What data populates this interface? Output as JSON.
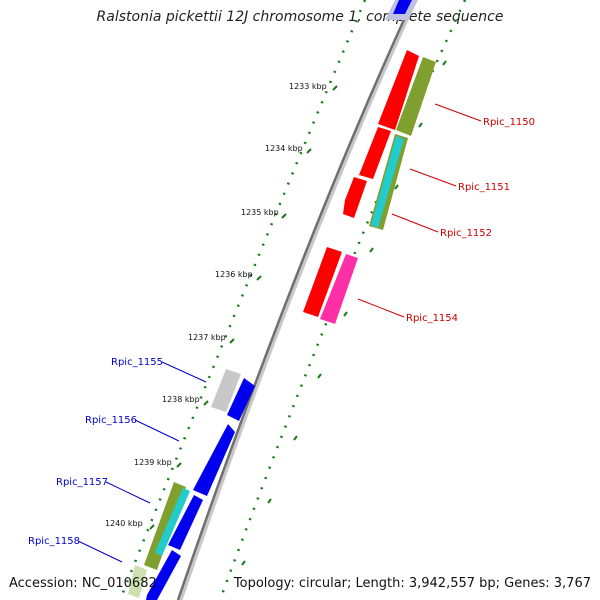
{
  "title": "Ralstonia pickettii 12J chromosome 1, complete sequence",
  "accession": "Accession: NC_010682",
  "topology": "Topology: circular; Length: 3,942,557 bp; Genes: 3,767",
  "ticks": [
    "1233 kbp",
    "1234 kbp",
    "1235 kbp",
    "1236 kbp",
    "1237 kbp",
    "1238 kbp",
    "1239 kbp",
    "1240 kbp"
  ],
  "gene_labels_forward": [
    "Rpic_1150",
    "Rpic_1151",
    "Rpic_1152",
    "Rpic_1154"
  ],
  "gene_labels_reverse": [
    "Rpic_1155",
    "Rpic_1156",
    "Rpic_1157",
    "Rpic_1158"
  ],
  "colors": {
    "red": "#ff0000",
    "olive": "#7f9f2f",
    "cyan": "#22cccc",
    "magenta": "#ff2fa6",
    "blue": "#0000ee",
    "gray": "#c8c8c8",
    "tick_green": "#1a7a1a",
    "label_red": "#cc0000",
    "label_blue": "#0000cc"
  }
}
